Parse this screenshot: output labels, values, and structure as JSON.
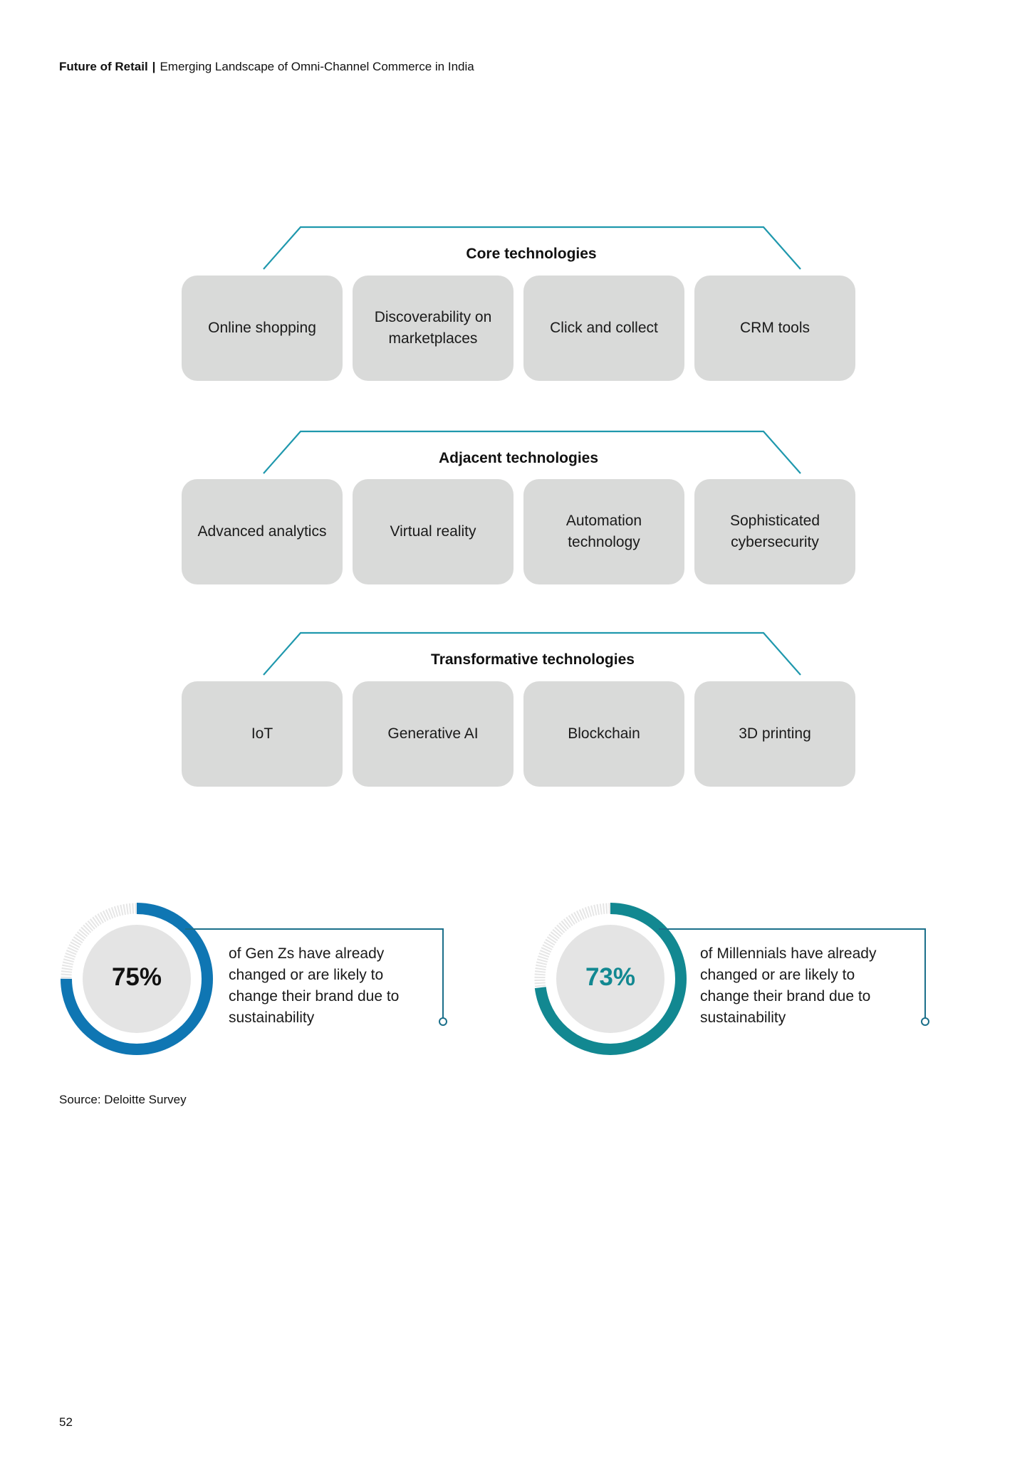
{
  "header": {
    "brand": "Future of Retail",
    "separator": "|",
    "subtitle": "Emerging Landscape of Omni-Channel Commerce in India"
  },
  "groups": [
    {
      "title": "Core technologies",
      "items": [
        "Online shopping",
        "Discoverability on marketplaces",
        "Click and collect",
        "CRM tools"
      ]
    },
    {
      "title": "Adjacent technologies",
      "items": [
        "Advanced analytics",
        "Virtual reality",
        "Automation technology",
        "Sophisticated cybersecurity"
      ]
    },
    {
      "title": "Transformative technologies",
      "items": [
        "IoT",
        "Generative AI",
        "Blockchain",
        "3D printing"
      ]
    }
  ],
  "stats": [
    {
      "percent": "75%",
      "value": 0.75,
      "text": "of Gen Zs have already changed or are likely to change their brand due to sustainability",
      "color": "#0f76b3",
      "text_color": "#111111"
    },
    {
      "percent": "73%",
      "value": 0.73,
      "text": "of Millennials have already changed or are likely to change their brand due to sustainability",
      "color": "#128891",
      "text_color": "#128891"
    }
  ],
  "colors": {
    "bracket": "#1f98ad",
    "card": "#d9dad9",
    "inner_circle": "#e4e4e4",
    "track": "#e8e8e8"
  },
  "source": "Source: Deloitte Survey",
  "page_number": "52"
}
